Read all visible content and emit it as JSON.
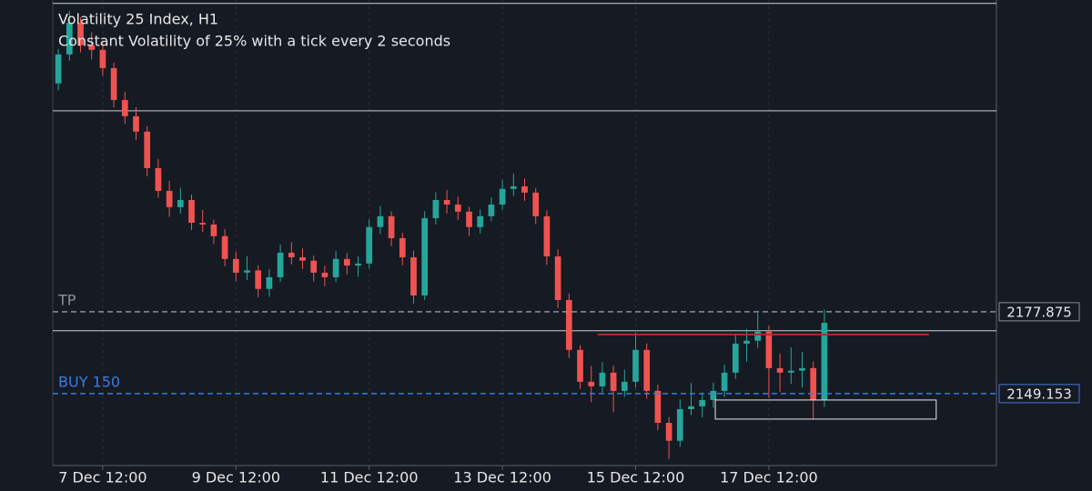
{
  "chart_data": {
    "type": "candlestick",
    "title": "Volatility 25 Index, H1",
    "subtitle": "Constant Volatility of 25% with a tick every 2 seconds",
    "xlim": [
      -6,
      334
    ],
    "ylim": [
      2123.9,
      2287.3
    ],
    "xticks": [
      {
        "value": 12,
        "label": "7 Dec 12:00"
      },
      {
        "value": 60,
        "label": "9 Dec 12:00"
      },
      {
        "value": 108,
        "label": "11 Dec 12:00"
      },
      {
        "value": 156,
        "label": "13 Dec 12:00"
      },
      {
        "value": 204,
        "label": "15 Dec 12:00"
      },
      {
        "value": 252,
        "label": "17 Dec 12:00"
      }
    ],
    "grid": true,
    "up_color": "#26a69a",
    "down_color": "#ef5350",
    "x": [
      -4,
      0,
      4,
      8,
      12,
      16,
      20,
      24,
      28,
      32,
      36,
      40,
      44,
      48,
      52,
      56,
      60,
      64,
      68,
      72,
      76,
      80,
      84,
      88,
      92,
      96,
      100,
      104,
      108,
      112,
      116,
      120,
      124,
      128,
      132,
      136,
      140,
      144,
      148,
      152,
      156,
      160,
      164,
      168,
      172,
      176,
      180,
      184,
      188,
      192,
      196,
      200,
      204,
      208,
      212,
      216,
      220,
      224,
      228,
      232,
      236,
      240,
      244,
      248,
      252,
      256,
      260,
      264,
      268,
      272
    ],
    "candles": [
      [
        2258.0,
        2270.1,
        2255.6,
        2268.2
      ],
      [
        2268.2,
        2283.5,
        2266.0,
        2279.3
      ],
      [
        2279.3,
        2281.2,
        2268.9,
        2271.4
      ],
      [
        2271.4,
        2276.0,
        2266.5,
        2269.8
      ],
      [
        2269.8,
        2272.4,
        2260.7,
        2263.4
      ],
      [
        2263.4,
        2265.3,
        2249.6,
        2252.2
      ],
      [
        2252.2,
        2255.1,
        2243.8,
        2246.5
      ],
      [
        2246.5,
        2249.7,
        2238.2,
        2241.1
      ],
      [
        2241.1,
        2243.0,
        2225.4,
        2228.3
      ],
      [
        2228.3,
        2231.5,
        2217.9,
        2220.3
      ],
      [
        2220.3,
        2223.8,
        2211.2,
        2214.6
      ],
      [
        2214.6,
        2221.4,
        2212.3,
        2217.1
      ],
      [
        2217.1,
        2219.0,
        2206.5,
        2209.1
      ],
      [
        2209.1,
        2213.6,
        2205.8,
        2208.5
      ],
      [
        2208.5,
        2210.2,
        2201.6,
        2204.4
      ],
      [
        2204.4,
        2206.9,
        2193.8,
        2196.4
      ],
      [
        2196.4,
        2199.0,
        2188.7,
        2191.6
      ],
      [
        2191.6,
        2197.3,
        2189.0,
        2192.4
      ],
      [
        2192.4,
        2194.2,
        2182.9,
        2185.9
      ],
      [
        2185.9,
        2192.8,
        2183.1,
        2190.0
      ],
      [
        2190.0,
        2201.5,
        2188.4,
        2198.6
      ],
      [
        2198.6,
        2202.3,
        2194.5,
        2197.0
      ],
      [
        2197.0,
        2200.1,
        2192.9,
        2195.8
      ],
      [
        2195.8,
        2197.6,
        2188.5,
        2191.6
      ],
      [
        2191.6,
        2194.0,
        2186.8,
        2190.0
      ],
      [
        2190.0,
        2199.2,
        2188.3,
        2196.4
      ],
      [
        2196.4,
        2198.5,
        2191.0,
        2194.1
      ],
      [
        2194.1,
        2197.4,
        2190.2,
        2194.8
      ],
      [
        2194.8,
        2210.3,
        2193.1,
        2207.6
      ],
      [
        2207.6,
        2215.0,
        2205.2,
        2211.4
      ],
      [
        2211.4,
        2213.1,
        2200.9,
        2203.7
      ],
      [
        2203.7,
        2205.5,
        2194.2,
        2197.0
      ],
      [
        2197.0,
        2199.3,
        2180.8,
        2183.6
      ],
      [
        2183.6,
        2213.2,
        2182.0,
        2210.7
      ],
      [
        2210.7,
        2219.8,
        2208.5,
        2217.1
      ],
      [
        2217.1,
        2220.6,
        2212.4,
        2215.5
      ],
      [
        2215.5,
        2218.3,
        2210.1,
        2213.0
      ],
      [
        2213.0,
        2214.7,
        2204.5,
        2207.6
      ],
      [
        2207.6,
        2213.8,
        2205.3,
        2211.4
      ],
      [
        2211.4,
        2218.0,
        2209.6,
        2215.5
      ],
      [
        2215.5,
        2224.2,
        2213.7,
        2221.0
      ],
      [
        2221.0,
        2226.4,
        2218.5,
        2221.9
      ],
      [
        2221.9,
        2224.6,
        2216.8,
        2219.7
      ],
      [
        2219.7,
        2221.3,
        2208.6,
        2211.4
      ],
      [
        2211.4,
        2213.5,
        2194.4,
        2197.3
      ],
      [
        2197.3,
        2199.8,
        2179.1,
        2182.0
      ],
      [
        2182.0,
        2184.3,
        2161.7,
        2164.5
      ],
      [
        2164.5,
        2166.2,
        2150.8,
        2153.3
      ],
      [
        2153.3,
        2158.9,
        2146.1,
        2151.7
      ],
      [
        2151.7,
        2160.2,
        2149.5,
        2156.5
      ],
      [
        2156.5,
        2159.0,
        2142.7,
        2150.1
      ],
      [
        2150.1,
        2157.6,
        2148.0,
        2153.3
      ],
      [
        2153.3,
        2170.6,
        2151.2,
        2164.5
      ],
      [
        2164.5,
        2166.8,
        2147.4,
        2150.1
      ],
      [
        2150.1,
        2152.3,
        2136.2,
        2138.9
      ],
      [
        2138.9,
        2141.0,
        2126.2,
        2132.6
      ],
      [
        2132.6,
        2147.1,
        2130.4,
        2143.7
      ],
      [
        2143.7,
        2152.9,
        2141.6,
        2144.7
      ],
      [
        2144.7,
        2149.5,
        2140.8,
        2146.9
      ],
      [
        2146.9,
        2153.0,
        2144.2,
        2150.1
      ],
      [
        2150.1,
        2159.3,
        2147.9,
        2156.5
      ],
      [
        2156.5,
        2170.2,
        2154.3,
        2166.7
      ],
      [
        2166.7,
        2171.8,
        2160.4,
        2167.7
      ],
      [
        2167.7,
        2177.5,
        2165.2,
        2170.9
      ],
      [
        2170.9,
        2173.0,
        2147.6,
        2158.1
      ],
      [
        2158.1,
        2163.2,
        2149.8,
        2156.5
      ],
      [
        2156.5,
        2165.4,
        2152.6,
        2157.2
      ],
      [
        2157.2,
        2163.7,
        2151.3,
        2158.1
      ],
      [
        2158.1,
        2160.4,
        2140.2,
        2146.9
      ],
      [
        2146.9,
        2178.6,
        2144.5,
        2174.0
      ]
    ],
    "hlines": [
      {
        "value": 2286.1,
        "color": "#d0d0d0"
      },
      {
        "value": 2248.4,
        "color": "#d0d0d0"
      },
      {
        "value": 2171.2,
        "color": "#d0d0d0"
      }
    ],
    "levels": [
      {
        "name": "TP",
        "value": 2177.875,
        "color": "#8a8f98"
      },
      {
        "name": "BUY 150",
        "value": 2149.153,
        "color": "#3d7be0"
      }
    ],
    "trendline": {
      "value": 2169.9,
      "x": [
        190.3,
        309.7
      ],
      "color": "#b22a2a"
    },
    "rectangle": {
      "top": 2146.9,
      "bottom": 2140.2,
      "x": [
        232.7,
        312.3
      ],
      "color": "#e8e8e8"
    }
  }
}
